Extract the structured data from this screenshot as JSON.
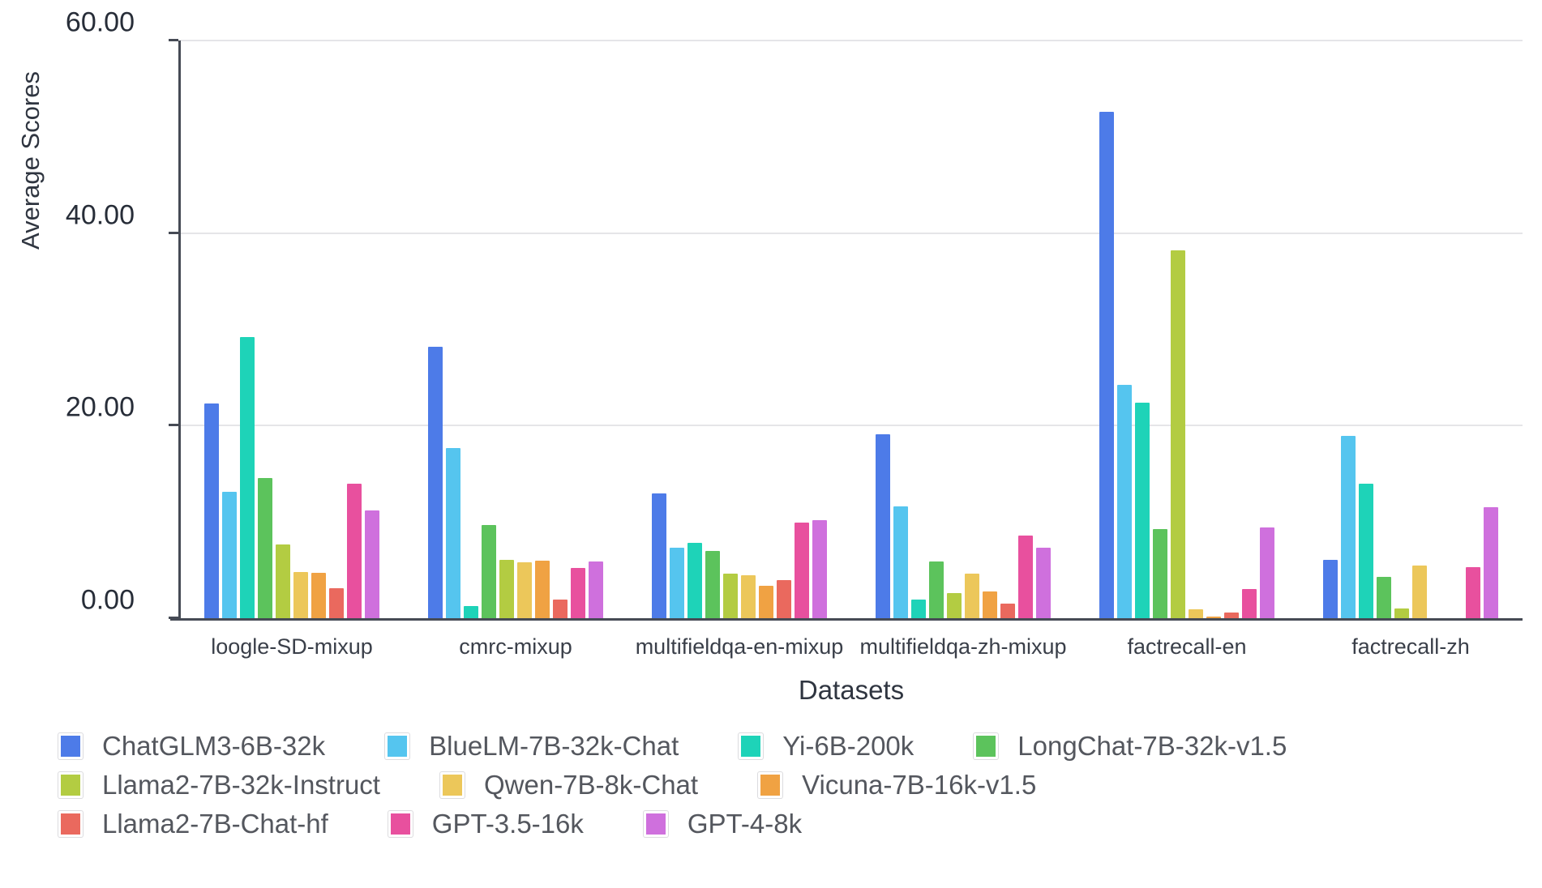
{
  "chart_data": {
    "type": "bar",
    "title": "",
    "xlabel": "Datasets",
    "ylabel": "Average Scores",
    "ylim": [
      0,
      60
    ],
    "grid": true,
    "legend_position": "bottom-left",
    "yticks": [
      {
        "value": 0,
        "label": "0.00"
      },
      {
        "value": 20,
        "label": "20.00"
      },
      {
        "value": 40,
        "label": "40.00"
      },
      {
        "value": 60,
        "label": "60.00"
      }
    ],
    "categories": [
      "loogle-SD-mixup",
      "cmrc-mixup",
      "multifieldqa-en-mixup",
      "multifieldqa-zh-mixup",
      "factrecall-en",
      "factrecall-zh"
    ],
    "series": [
      {
        "name": "ChatGLM3-6B-32k",
        "color": "#4d7be8",
        "values": [
          22.3,
          28.2,
          13.0,
          19.1,
          52.6,
          6.1
        ]
      },
      {
        "name": "BlueLM-7B-32k-Chat",
        "color": "#55c5ef",
        "values": [
          13.1,
          17.7,
          7.3,
          11.6,
          24.2,
          18.9
        ]
      },
      {
        "name": "Yi-6B-200k",
        "color": "#1ed3b8",
        "values": [
          29.2,
          1.3,
          7.8,
          1.9,
          22.4,
          14.0
        ]
      },
      {
        "name": "LongChat-7B-32k-v1.5",
        "color": "#5cc35c",
        "values": [
          14.6,
          9.7,
          7.0,
          5.9,
          9.3,
          4.3
        ]
      },
      {
        "name": "Llama2-7B-32k-Instruct",
        "color": "#b3cc42",
        "values": [
          7.7,
          6.1,
          4.6,
          2.6,
          38.2,
          1.0
        ]
      },
      {
        "name": "Qwen-7B-8k-Chat",
        "color": "#ecc75a",
        "values": [
          4.8,
          5.8,
          4.5,
          4.6,
          0.9,
          5.5
        ]
      },
      {
        "name": "Vicuna-7B-16k-v1.5",
        "color": "#f0a243",
        "values": [
          4.7,
          6.0,
          3.4,
          2.8,
          0.2,
          0
        ]
      },
      {
        "name": "Llama2-7B-Chat-hf",
        "color": "#ea695e",
        "values": [
          3.1,
          1.9,
          4.0,
          1.5,
          0.6,
          0
        ]
      },
      {
        "name": "GPT-3.5-16k",
        "color": "#e8509e",
        "values": [
          14.0,
          5.2,
          9.9,
          8.6,
          3.0,
          5.3
        ]
      },
      {
        "name": "GPT-4-8k",
        "color": "#cf70dd",
        "values": [
          11.2,
          5.9,
          10.2,
          7.3,
          9.4,
          11.5
        ]
      }
    ],
    "legend_rows": [
      [
        0,
        1,
        2,
        3
      ],
      [
        4,
        5,
        6
      ],
      [
        7,
        8,
        9
      ]
    ]
  }
}
